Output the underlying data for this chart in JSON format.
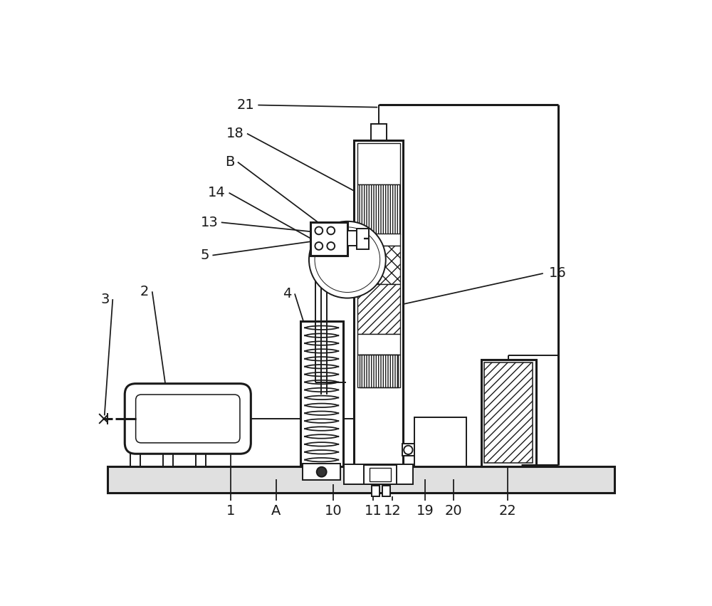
{
  "bg": "#ffffff",
  "lc": "#1a1a1a",
  "lw": 1.4,
  "lw2": 2.2,
  "figw": 10.0,
  "figh": 8.51,
  "fs": 14
}
